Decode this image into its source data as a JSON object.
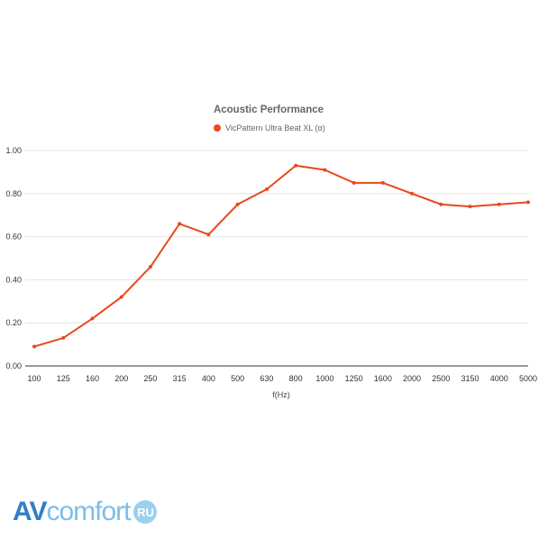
{
  "chart_data": {
    "type": "line",
    "title": "Acoustic Performance",
    "xlabel": "f(Hz)",
    "ylabel": "",
    "categories": [
      "100",
      "125",
      "160",
      "200",
      "250",
      "315",
      "400",
      "500",
      "630",
      "800",
      "1000",
      "1250",
      "1600",
      "2000",
      "2500",
      "3150",
      "4000",
      "5000"
    ],
    "series": [
      {
        "name": "VicPattern Ultra Beat XL (α)",
        "color": "#e8491d",
        "values": [
          0.09,
          0.13,
          0.22,
          0.32,
          0.46,
          0.66,
          0.61,
          0.75,
          0.82,
          0.93,
          0.91,
          0.85,
          0.85,
          0.8,
          0.75,
          0.74,
          0.75,
          0.76
        ]
      }
    ],
    "ylim": [
      0,
      1.0
    ],
    "yticks": [
      "0.00",
      "0.20",
      "0.40",
      "0.60",
      "0.80",
      "1.00"
    ],
    "grid": true,
    "legend_position": "top"
  },
  "watermark": {
    "av": "AV",
    "comfort": "comfort",
    "ru": "RU"
  }
}
